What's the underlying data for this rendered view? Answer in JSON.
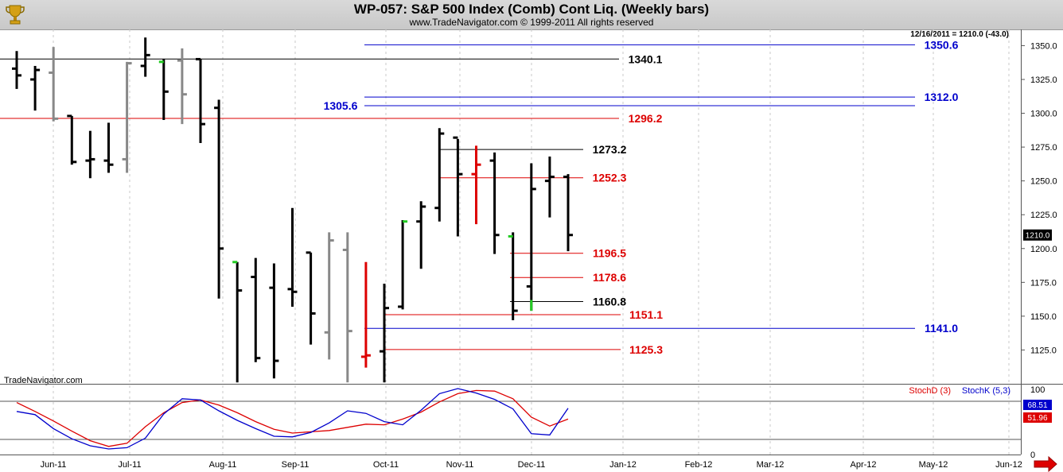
{
  "window": {
    "title": "WP-057:  S&P 500 Index (Comb) Cont Liq.  (Weekly bars)",
    "subtitle": "www.TradeNavigator.com © 1999-2011 All rights reserved",
    "last_info": "12/16/2011 = 1210.0 (-43.0)",
    "watermark": "TradeNavigator.com"
  },
  "chart_data": [
    {
      "type": "ohlc",
      "name": "price",
      "ylim": [
        1100,
        1362
      ],
      "y_ticks": [
        1125,
        1150,
        1175,
        1200,
        1225,
        1250,
        1275,
        1300,
        1325,
        1350
      ],
      "x_ticks": [
        "Jun-11",
        "Jul-11",
        "Aug-11",
        "Sep-11",
        "Oct-11",
        "Nov-11",
        "Dec-11",
        "Jan-12",
        "Feb-12",
        "Mar-12",
        "Apr-12",
        "May-12",
        "Jun-12"
      ],
      "last_price_label": "1210.0",
      "colors": {
        "black": "#000000",
        "gray": "#888888",
        "red": "#dd0000",
        "green": "#22cc22"
      },
      "bars": [
        {
          "o": 1333,
          "h": 1346,
          "l": 1318,
          "c": 1328,
          "color": "black"
        },
        {
          "o": 1325,
          "h": 1335,
          "l": 1302,
          "c": 1332,
          "color": "black"
        },
        {
          "o": 1330,
          "h": 1349,
          "l": 1294,
          "c": 1296,
          "color": "gray"
        },
        {
          "o": 1298,
          "h": 1298,
          "l": 1262,
          "c": 1264,
          "color": "black"
        },
        {
          "o": 1265,
          "h": 1287,
          "l": 1252,
          "c": 1266,
          "color": "black"
        },
        {
          "o": 1265,
          "h": 1293,
          "l": 1256,
          "c": 1262,
          "color": "black"
        },
        {
          "o": 1266,
          "h": 1338,
          "l": 1256,
          "c": 1337,
          "color": "gray"
        },
        {
          "o": 1335,
          "h": 1356,
          "l": 1327,
          "c": 1343,
          "color": "black"
        },
        {
          "o": 1338,
          "h": 1340,
          "l": 1295,
          "c": 1316,
          "color": "black",
          "open_color": "green"
        },
        {
          "o": 1339,
          "h": 1348,
          "l": 1292,
          "c": 1314,
          "color": "gray"
        },
        {
          "o": 1340,
          "h": 1340,
          "l": 1278,
          "c": 1292,
          "color": "black"
        },
        {
          "o": 1304,
          "h": 1310,
          "l": 1163,
          "c": 1200,
          "color": "black"
        },
        {
          "o": 1190,
          "h": 1190,
          "l": 1101,
          "c": 1169,
          "color": "black",
          "open_color": "green"
        },
        {
          "o": 1179,
          "h": 1193,
          "l": 1116,
          "c": 1119,
          "color": "black"
        },
        {
          "o": 1171,
          "h": 1189,
          "l": 1104,
          "c": 1117,
          "color": "black"
        },
        {
          "o": 1170,
          "h": 1230,
          "l": 1157,
          "c": 1168,
          "color": "black"
        },
        {
          "o": 1197,
          "h": 1197,
          "l": 1129,
          "c": 1152,
          "color": "black"
        },
        {
          "o": 1138,
          "h": 1212,
          "l": 1118,
          "c": 1206,
          "color": "gray"
        },
        {
          "o": 1199,
          "h": 1212,
          "l": 1101,
          "c": 1139,
          "color": "gray"
        },
        {
          "o": 1120,
          "h": 1190,
          "l": 1112,
          "c": 1121,
          "color": "red"
        },
        {
          "o": 1124,
          "h": 1174,
          "l": 1101,
          "c": 1156,
          "color": "black"
        },
        {
          "o": 1157,
          "h": 1221,
          "l": 1155,
          "c": 1220,
          "color": "black",
          "close_color": "green"
        },
        {
          "o": 1220,
          "h": 1235,
          "l": 1185,
          "c": 1231,
          "color": "black"
        },
        {
          "o": 1230,
          "h": 1289,
          "l": 1220,
          "c": 1285,
          "color": "black"
        },
        {
          "o": 1282,
          "h": 1281,
          "l": 1209,
          "c": 1255,
          "color": "black"
        },
        {
          "o": 1255,
          "h": 1276,
          "l": 1218,
          "c": 1262,
          "color": "red"
        },
        {
          "o": 1265,
          "h": 1271,
          "l": 1196,
          "c": 1210,
          "color": "black"
        },
        {
          "o": 1209,
          "h": 1212,
          "l": 1147,
          "c": 1154,
          "color": "black",
          "open_color": "green"
        },
        {
          "o": 1172,
          "h": 1263,
          "l": 1154,
          "c": 1244,
          "color": "black",
          "low_color": "green"
        },
        {
          "o": 1250,
          "h": 1268,
          "l": 1223,
          "c": 1253,
          "color": "black"
        },
        {
          "o": 1253,
          "h": 1255,
          "l": 1198,
          "c": 1210,
          "color": "black"
        }
      ],
      "levels": [
        {
          "label": "1350.6",
          "value": 1350.6,
          "color": "blue"
        },
        {
          "label": "1340.1",
          "value": 1340.1,
          "color": "black"
        },
        {
          "label": "1312.0",
          "value": 1312.0,
          "color": "blue"
        },
        {
          "label": "1305.6",
          "value": 1305.6,
          "color": "blue"
        },
        {
          "label": "1296.2",
          "value": 1296.2,
          "color": "red"
        },
        {
          "label": "1273.2",
          "value": 1273.2,
          "color": "black"
        },
        {
          "label": "1252.3",
          "value": 1252.3,
          "color": "red"
        },
        {
          "label": "1196.5",
          "value": 1196.5,
          "color": "red"
        },
        {
          "label": "1178.6",
          "value": 1178.6,
          "color": "red"
        },
        {
          "label": "1160.8",
          "value": 1160.8,
          "color": "black"
        },
        {
          "label": "1151.1",
          "value": 1151.1,
          "color": "red"
        },
        {
          "label": "1141.0",
          "value": 1141.0,
          "color": "blue"
        },
        {
          "label": "1125.3",
          "value": 1125.3,
          "color": "red"
        }
      ]
    },
    {
      "type": "line",
      "name": "stochastic",
      "ylim": [
        0,
        100
      ],
      "y_ticks": [
        0,
        100
      ],
      "legend": [
        "StochD (3)",
        "StochK (5,3)"
      ],
      "reference_lines": [
        80,
        20
      ],
      "series": [
        {
          "name": "StochD (3)",
          "color": "#dd0000",
          "last_label": "51.96",
          "values": [
            78,
            64,
            49,
            33,
            18,
            9,
            14,
            40,
            62,
            78,
            82,
            74,
            62,
            48,
            36,
            30,
            32,
            34,
            39,
            44,
            43,
            52,
            63,
            79,
            92,
            97,
            96,
            84,
            55,
            41,
            52
          ]
        },
        {
          "name": "StochK (5,3)",
          "color": "#0000cc",
          "last_label": "68.51",
          "values": [
            64,
            59,
            37,
            21,
            10,
            5,
            7,
            22,
            60,
            84,
            82,
            65,
            50,
            37,
            25,
            24,
            31,
            46,
            65,
            61,
            48,
            43,
            66,
            92,
            100,
            93,
            83,
            68,
            29,
            27,
            69
          ]
        }
      ]
    }
  ]
}
